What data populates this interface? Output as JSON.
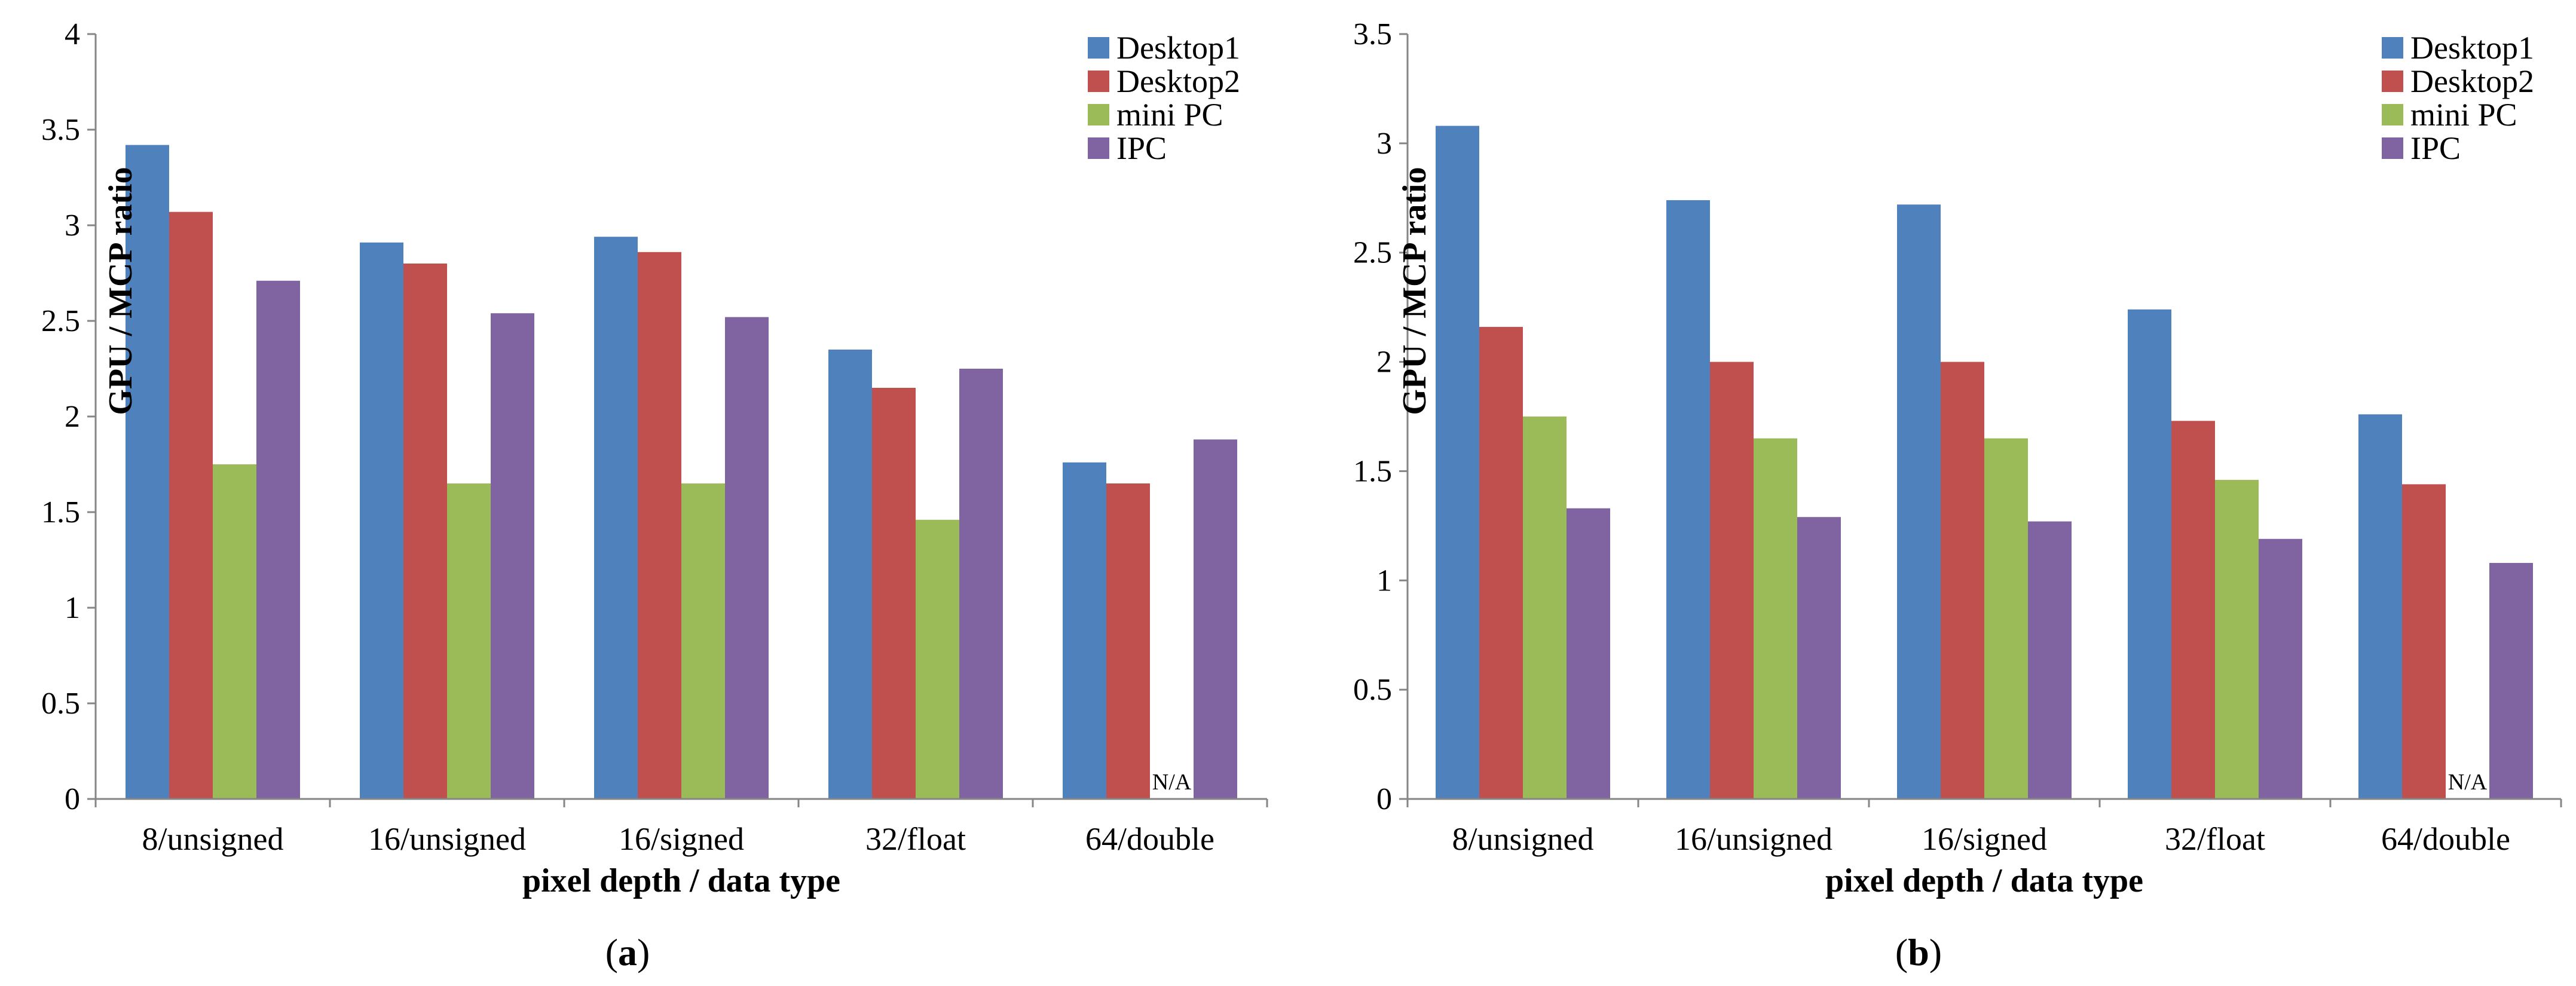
{
  "colors": {
    "Desktop1": "#4f81bd",
    "Desktop2": "#c0504d",
    "mini PC": "#9bbb59",
    "IPC": "#8064a2",
    "axis": "#868686"
  },
  "chart_data": [
    {
      "type": "bar",
      "panel": "a",
      "caption": {
        "open": "(",
        "letter": "a",
        "close": ")"
      },
      "categories": [
        "8/unsigned",
        "16/unsigned",
        "16/signed",
        "32/float",
        "64/double"
      ],
      "series": [
        {
          "name": "Desktop1",
          "values": [
            3.42,
            2.91,
            2.94,
            2.35,
            1.76
          ]
        },
        {
          "name": "Desktop2",
          "values": [
            3.07,
            2.8,
            2.86,
            2.15,
            1.65
          ]
        },
        {
          "name": "mini PC",
          "values": [
            1.75,
            1.65,
            1.65,
            1.46,
            null
          ]
        },
        {
          "name": "IPC",
          "values": [
            2.71,
            2.54,
            2.52,
            2.25,
            1.88
          ]
        }
      ],
      "na_label": "N/A",
      "xlabel": "pixel depth / data type",
      "ylabel": "GPU / MCP ratio",
      "ylim": [
        0,
        4
      ],
      "yticks": [
        "0",
        "0.5",
        "1",
        "1.5",
        "2",
        "2.5",
        "3",
        "3.5",
        "4"
      ],
      "legend_position": "top-right"
    },
    {
      "type": "bar",
      "panel": "b",
      "caption": {
        "open": "(",
        "letter": "b",
        "close": ")"
      },
      "categories": [
        "8/unsigned",
        "16/unsigned",
        "16/signed",
        "32/float",
        "64/double"
      ],
      "series": [
        {
          "name": "Desktop1",
          "values": [
            3.08,
            2.74,
            2.72,
            2.24,
            1.76
          ]
        },
        {
          "name": "Desktop2",
          "values": [
            2.16,
            2.0,
            2.0,
            1.73,
            1.44
          ]
        },
        {
          "name": "mini PC",
          "values": [
            1.75,
            1.65,
            1.65,
            1.46,
            null
          ]
        },
        {
          "name": "IPC",
          "values": [
            1.33,
            1.29,
            1.27,
            1.19,
            1.08
          ]
        }
      ],
      "na_label": "N/A",
      "xlabel": "pixel depth / data type",
      "ylabel": "GPU / MCP ratio",
      "ylim": [
        0,
        3.5
      ],
      "yticks": [
        "0",
        "0.5",
        "1",
        "1.5",
        "2",
        "2.5",
        "3",
        "3.5"
      ],
      "legend_position": "top-right"
    }
  ]
}
